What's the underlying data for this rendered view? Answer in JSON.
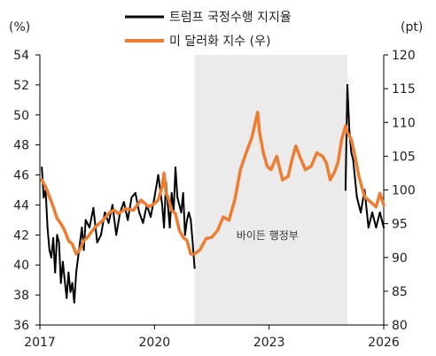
{
  "chart_data": {
    "type": "line",
    "xlim": [
      2017,
      2026
    ],
    "x_ticks": [
      "2017",
      "2020",
      "2023",
      "2026"
    ],
    "y_left": {
      "unit": "(%)",
      "ylim": [
        36,
        54
      ],
      "ticks": [
        "36",
        "38",
        "40",
        "42",
        "44",
        "46",
        "48",
        "50",
        "52",
        "54"
      ]
    },
    "y_right": {
      "unit": "(pt)",
      "ylim": [
        80,
        120
      ],
      "ticks": [
        "80",
        "85",
        "90",
        "95",
        "100",
        "105",
        "110",
        "115",
        "120"
      ]
    },
    "shaded_region": {
      "label": "바이든 행정부",
      "x_start": 2021.05,
      "x_end": 2025.05,
      "color": "#ebebeb"
    },
    "legend_position": "top-center",
    "grid": false,
    "series": [
      {
        "name": "트럼프 국정수행 지지율",
        "axis": "left",
        "color": "#000000",
        "x": [
          2017.05,
          2017.1,
          2017.15,
          2017.2,
          2017.25,
          2017.3,
          2017.35,
          2017.4,
          2017.45,
          2017.5,
          2017.55,
          2017.6,
          2017.65,
          2017.7,
          2017.75,
          2017.8,
          2017.85,
          2017.9,
          2017.95,
          2018.0,
          2018.05,
          2018.1,
          2018.15,
          2018.2,
          2018.3,
          2018.4,
          2018.5,
          2018.6,
          2018.7,
          2018.8,
          2018.9,
          2019.0,
          2019.1,
          2019.2,
          2019.3,
          2019.4,
          2019.5,
          2019.6,
          2019.7,
          2019.8,
          2019.9,
          2020.0,
          2020.1,
          2020.2,
          2020.25,
          2020.3,
          2020.35,
          2020.4,
          2020.45,
          2020.5,
          2020.55,
          2020.6,
          2020.7,
          2020.75,
          2020.8,
          2020.85,
          2020.9,
          2020.95,
          2021.0,
          2021.05,
          2025.0,
          2025.05,
          2025.1,
          2025.15,
          2025.2,
          2025.3,
          2025.4,
          2025.5,
          2025.6,
          2025.7,
          2025.8,
          2025.9,
          2026.0
        ],
        "y": [
          46.5,
          44.5,
          45.0,
          42.5,
          41.0,
          40.5,
          41.8,
          39.5,
          42.0,
          41.5,
          38.8,
          40.2,
          39.0,
          37.8,
          39.5,
          38.2,
          38.8,
          37.5,
          39.5,
          40.5,
          41.5,
          42.5,
          41.0,
          43.0,
          42.5,
          43.8,
          41.5,
          42.0,
          43.5,
          42.8,
          44.0,
          42.0,
          43.5,
          44.2,
          43.0,
          44.5,
          44.8,
          43.5,
          42.8,
          44.0,
          43.2,
          44.5,
          46.0,
          44.0,
          42.5,
          45.5,
          44.0,
          42.5,
          44.8,
          43.5,
          46.5,
          44.5,
          43.5,
          44.8,
          42.0,
          43.0,
          43.5,
          43.0,
          41.5,
          39.8,
          45.0,
          52.0,
          49.0,
          47.5,
          47.0,
          44.5,
          43.5,
          45.0,
          42.5,
          43.5,
          42.5,
          43.5,
          42.5
        ]
      },
      {
        "name": "미 달러화 지수 (우)",
        "axis": "right",
        "color": "#ed7d31",
        "x": [
          2017.05,
          2017.15,
          2017.25,
          2017.35,
          2017.45,
          2017.55,
          2017.65,
          2017.75,
          2017.85,
          2017.95,
          2018.05,
          2018.15,
          2018.25,
          2018.35,
          2018.45,
          2018.55,
          2018.65,
          2018.75,
          2018.85,
          2018.95,
          2019.05,
          2019.25,
          2019.45,
          2019.65,
          2019.85,
          2020.0,
          2020.1,
          2020.2,
          2020.25,
          2020.3,
          2020.35,
          2020.45,
          2020.55,
          2020.65,
          2020.75,
          2020.85,
          2020.95,
          2021.05,
          2021.2,
          2021.35,
          2021.5,
          2021.65,
          2021.8,
          2021.95,
          2022.1,
          2022.25,
          2022.4,
          2022.55,
          2022.7,
          2022.75,
          2022.85,
          2022.95,
          2023.05,
          2023.2,
          2023.35,
          2023.5,
          2023.6,
          2023.7,
          2023.8,
          2023.95,
          2024.1,
          2024.25,
          2024.4,
          2024.5,
          2024.6,
          2024.7,
          2024.8,
          2024.9,
          2025.0,
          2025.05,
          2025.15,
          2025.25,
          2025.35,
          2025.5,
          2025.6,
          2025.7,
          2025.8,
          2025.9,
          2026.0
        ],
        "y": [
          101.5,
          100.5,
          99.0,
          97.5,
          95.8,
          95.0,
          94.0,
          92.5,
          92.0,
          90.5,
          91.2,
          92.5,
          93.0,
          93.8,
          94.5,
          95.0,
          95.5,
          96.2,
          96.8,
          97.0,
          96.5,
          97.2,
          97.0,
          98.5,
          97.5,
          98.0,
          98.5,
          100.5,
          102.5,
          99.5,
          99.0,
          97.0,
          96.5,
          94.0,
          93.0,
          92.5,
          90.5,
          90.5,
          91.2,
          92.8,
          93.0,
          94.0,
          96.0,
          95.5,
          98.5,
          103.0,
          105.5,
          107.8,
          111.5,
          108.5,
          105.5,
          103.5,
          103.0,
          105.0,
          101.5,
          102.0,
          104.5,
          106.5,
          105.0,
          103.0,
          103.5,
          105.5,
          105.0,
          104.0,
          101.5,
          102.5,
          104.0,
          107.5,
          109.5,
          108.5,
          107.5,
          105.0,
          102.0,
          99.0,
          98.5,
          98.0,
          97.5,
          99.5,
          97.8
        ]
      }
    ]
  },
  "legend": {
    "item1": {
      "label": "트럼프 국정수행 지지율",
      "color": "#000000"
    },
    "item2": {
      "label": "미 달러화 지수 (우)",
      "color": "#ed7d31"
    }
  }
}
